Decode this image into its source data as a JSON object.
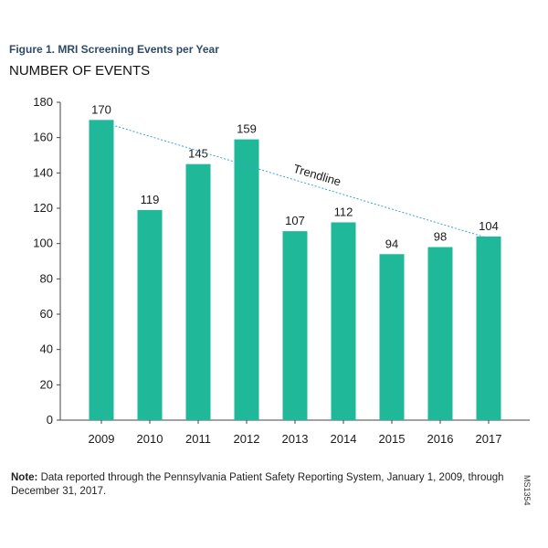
{
  "header": {
    "figure_title": "Figure 1. MRI Screening Events per Year",
    "y_title": "NUMBER OF EVENTS"
  },
  "chart_data": {
    "type": "bar",
    "categories": [
      "2009",
      "2010",
      "2011",
      "2012",
      "2013",
      "2014",
      "2015",
      "2016",
      "2017"
    ],
    "values": [
      170,
      119,
      145,
      159,
      107,
      112,
      94,
      98,
      104
    ],
    "ylim": [
      0,
      180
    ],
    "yticks": [
      0,
      20,
      40,
      60,
      80,
      100,
      120,
      140,
      160,
      180
    ],
    "trendline": {
      "label": "Trendline",
      "from": {
        "x": "2009",
        "y": 169
      },
      "to": {
        "x": "2017",
        "y": 103
      }
    },
    "bar_color": "#1fb899",
    "trend_color": "#3aa3d8",
    "grid": false,
    "legend": "none"
  },
  "footer": {
    "note_label": "Note:",
    "note_text": " Data reported through the Pennsylvania Patient Safety Reporting System, January 1, 2009, through December 31, 2017.",
    "code": "MS1354"
  }
}
